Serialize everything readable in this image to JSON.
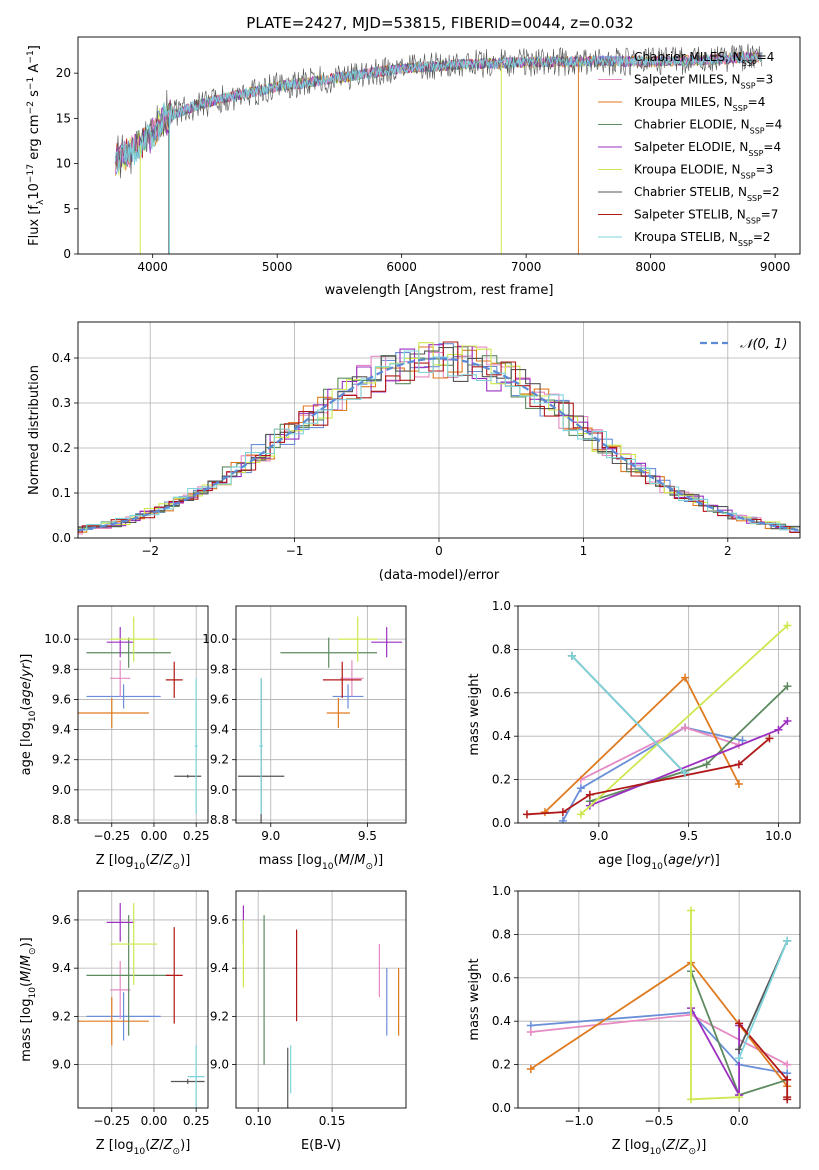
{
  "figure_title": "PLATE=2427, MJD=53815, FIBERID=0044, z=0.032",
  "colors": {
    "Chabrier MILES": "#6a8fd8",
    "Salpeter MILES": "#e58ac2",
    "Kroupa MILES": "#e07a1f",
    "Chabrier ELODIE": "#5e8a60",
    "Salpeter ELODIE": "#9b30c0",
    "Kroupa ELODIE": "#cde84f",
    "Chabrier STELIB": "#555555",
    "Salpeter STELIB": "#b01818",
    "Kroupa STELIB": "#7fd4dc",
    "normal": "#5b8bd6"
  },
  "chart_data": [
    {
      "id": "spectrum",
      "type": "line",
      "xlabel": "wavelength [Angstrom, rest frame]",
      "ylabel": "Flux [f",
      "xlim": [
        3400,
        9200
      ],
      "ylim": [
        0,
        24
      ],
      "xticks": [
        "4000",
        "5000",
        "6000",
        "7000",
        "8000",
        "9000"
      ],
      "yticks": [
        "0",
        "5",
        "10",
        "15",
        "20"
      ],
      "grid": false,
      "legend_position": "right",
      "legend": [
        "Chabrier MILES, N=4",
        "Salpeter MILES, N=3",
        "Kroupa MILES, N=4",
        "Chabrier ELODIE, N=4",
        "Salpeter ELODIE, N=4",
        "Kroupa ELODIE, N=3",
        "Chabrier STELIB, N=2",
        "Salpeter STELIB, N=7",
        "Kroupa STELIB, N=2"
      ],
      "continuum": {
        "x": [
          3700,
          3800,
          3900,
          4000,
          4100,
          4300,
          4500,
          5000,
          5500,
          6000,
          6500,
          7000,
          7500,
          8000,
          8500,
          8900
        ],
        "y": [
          10.5,
          11.0,
          12.0,
          13.5,
          15.0,
          16.2,
          17.0,
          18.5,
          19.5,
          20.5,
          21.0,
          21.2,
          21.3,
          21.3,
          21.5,
          21.8
        ]
      },
      "spikes": [
        {
          "series": "Chabrier STELIB",
          "x": 4130,
          "y_low": 0
        },
        {
          "series": "Kroupa STELIB",
          "x": 4135,
          "y_low": 0
        },
        {
          "series": "Kroupa ELODIE",
          "x": 3900,
          "y_low": 0
        },
        {
          "series": "Kroupa ELODIE",
          "x": 6800,
          "y_low": 0
        },
        {
          "series": "Kroupa MILES",
          "x": 7420,
          "y_low": 0
        }
      ]
    },
    {
      "id": "residual_hist",
      "type": "line",
      "xlabel": "(data-model)/error",
      "ylabel": "Normed distribution",
      "xlim": [
        -2.5,
        2.5
      ],
      "ylim": [
        0,
        0.48
      ],
      "xticks": [
        "−2",
        "−1",
        "0",
        "1",
        "2"
      ],
      "yticks": [
        "0.0",
        "0.1",
        "0.2",
        "0.3",
        "0.4"
      ],
      "grid": true,
      "legend_position": "top-right",
      "legend": [
        "N(0, 1)"
      ]
    },
    {
      "id": "age_vs_Z",
      "type": "scatter",
      "xlabel": "Z [log10(Z/Z⊙)]",
      "ylabel": "age  [log10(age/yr)]",
      "xlim": [
        -0.45,
        0.32
      ],
      "ylim": [
        8.78,
        10.22
      ],
      "xticks": [
        "−0.25",
        "0.00",
        "0.25"
      ],
      "yticks": [
        "8.8",
        "9.0",
        "9.2",
        "9.4",
        "9.6",
        "9.8",
        "10.0"
      ],
      "grid": true,
      "points": [
        {
          "series": "Chabrier MILES",
          "x": -0.18,
          "y": 9.62,
          "dx": 0.22,
          "dy": 0.08
        },
        {
          "series": "Salpeter MILES",
          "x": -0.2,
          "y": 9.74,
          "dx": 0.06,
          "dy": 0.12
        },
        {
          "series": "Kroupa MILES",
          "x": -0.25,
          "y": 9.51,
          "dx": 0.22,
          "dy": 0.1
        },
        {
          "series": "Chabrier ELODIE",
          "x": -0.15,
          "y": 9.91,
          "dx": 0.25,
          "dy": 0.1
        },
        {
          "series": "Salpeter ELODIE",
          "x": -0.2,
          "y": 9.98,
          "dx": 0.08,
          "dy": 0.1
        },
        {
          "series": "Kroupa ELODIE",
          "x": -0.12,
          "y": 10.0,
          "dx": 0.14,
          "dy": 0.15
        },
        {
          "series": "Chabrier STELIB",
          "x": 0.2,
          "y": 9.09,
          "dx": 0.08,
          "dy": 0.01
        },
        {
          "series": "Salpeter STELIB",
          "x": 0.12,
          "y": 9.73,
          "dx": 0.05,
          "dy": 0.12
        },
        {
          "series": "Kroupa STELIB",
          "x": 0.25,
          "y": 9.29,
          "dx": 0.01,
          "dy": 0.45
        }
      ]
    },
    {
      "id": "age_vs_mass",
      "type": "scatter",
      "xlabel": "mass [log10(M/M⊙)]",
      "ylabel": "",
      "xlim": [
        8.82,
        9.7
      ],
      "ylim": [
        8.78,
        10.22
      ],
      "xticks": [
        "9.0",
        "9.5"
      ],
      "yticks": [
        "8.8",
        "9.0",
        "9.2",
        "9.4",
        "9.6",
        "9.8",
        "10.0"
      ],
      "grid": true,
      "points": [
        {
          "series": "Chabrier MILES",
          "x": 9.4,
          "y": 9.62,
          "dx": 0.08,
          "dy": 0.08
        },
        {
          "series": "Salpeter MILES",
          "x": 9.42,
          "y": 9.74,
          "dx": 0.06,
          "dy": 0.12
        },
        {
          "series": "Kroupa MILES",
          "x": 9.35,
          "y": 9.51,
          "dx": 0.06,
          "dy": 0.1
        },
        {
          "series": "Chabrier ELODIE",
          "x": 9.3,
          "y": 9.91,
          "dx": 0.25,
          "dy": 0.1
        },
        {
          "series": "Salpeter ELODIE",
          "x": 9.6,
          "y": 9.98,
          "dx": 0.08,
          "dy": 0.1
        },
        {
          "series": "Kroupa ELODIE",
          "x": 9.45,
          "y": 10.0,
          "dx": 0.1,
          "dy": 0.15
        },
        {
          "series": "Chabrier STELIB",
          "x": 8.95,
          "y": 9.09,
          "dx": 0.12,
          "dy": 0.65
        },
        {
          "series": "Salpeter STELIB",
          "x": 9.37,
          "y": 9.73,
          "dx": 0.1,
          "dy": 0.12
        },
        {
          "series": "Kroupa STELIB",
          "x": 8.95,
          "y": 9.29,
          "dx": 0.01,
          "dy": 0.45
        }
      ]
    },
    {
      "id": "weight_vs_age",
      "type": "line",
      "xlabel": "age  [log10(age/yr)]",
      "ylabel": "mass weight",
      "xlim": [
        8.55,
        10.12
      ],
      "ylim": [
        0,
        1.0
      ],
      "xticks": [
        "9.0",
        "9.5",
        "10.0"
      ],
      "yticks": [
        "0.0",
        "0.2",
        "0.4",
        "0.6",
        "0.8",
        "1.0"
      ],
      "grid": true,
      "series": [
        {
          "series": "Chabrier MILES",
          "x": [
            8.8,
            8.9,
            9.48,
            9.8
          ],
          "y": [
            0.01,
            0.16,
            0.44,
            0.38
          ]
        },
        {
          "series": "Salpeter MILES",
          "x": [
            8.9,
            9.48,
            9.78
          ],
          "y": [
            0.2,
            0.44,
            0.36
          ]
        },
        {
          "series": "Kroupa MILES",
          "x": [
            8.7,
            9.48,
            9.78
          ],
          "y": [
            0.05,
            0.67,
            0.18
          ]
        },
        {
          "series": "Chabrier ELODIE",
          "x": [
            8.95,
            9.6,
            10.05
          ],
          "y": [
            0.1,
            0.27,
            0.63
          ]
        },
        {
          "series": "Salpeter ELODIE",
          "x": [
            8.95,
            10.0,
            10.05
          ],
          "y": [
            0.08,
            0.43,
            0.47
          ]
        },
        {
          "series": "Kroupa ELODIE",
          "x": [
            8.9,
            10.05
          ],
          "y": [
            0.04,
            0.91
          ]
        },
        {
          "series": "Chabrier STELIB",
          "x": [
            8.85,
            9.48
          ],
          "y": [
            0.77,
            0.23
          ]
        },
        {
          "series": "Salpeter STELIB",
          "x": [
            8.6,
            8.8,
            8.95,
            9.78,
            9.95
          ],
          "y": [
            0.04,
            0.05,
            0.13,
            0.27,
            0.39
          ]
        },
        {
          "series": "Kroupa STELIB",
          "x": [
            8.85,
            9.48
          ],
          "y": [
            0.77,
            0.23
          ]
        }
      ]
    },
    {
      "id": "mass_vs_Z",
      "type": "scatter",
      "xlabel": "Z [log10(Z/Z⊙)]",
      "ylabel": "mass [log10(M/M⊙)]",
      "xlim": [
        -0.45,
        0.32
      ],
      "ylim": [
        8.82,
        9.72
      ],
      "xticks": [
        "−0.25",
        "0.00",
        "0.25"
      ],
      "yticks": [
        "9.0",
        "9.2",
        "9.4",
        "9.6"
      ],
      "grid": true,
      "points": [
        {
          "series": "Chabrier MILES",
          "x": -0.18,
          "y": 9.2,
          "dx": 0.22,
          "dy": 0.1
        },
        {
          "series": "Salpeter MILES",
          "x": -0.2,
          "y": 9.31,
          "dx": 0.06,
          "dy": 0.12
        },
        {
          "series": "Kroupa MILES",
          "x": -0.25,
          "y": 9.18,
          "dx": 0.22,
          "dy": 0.1
        },
        {
          "series": "Chabrier ELODIE",
          "x": -0.15,
          "y": 9.37,
          "dx": 0.25,
          "dy": 0.25
        },
        {
          "series": "Salpeter ELODIE",
          "x": -0.2,
          "y": 9.59,
          "dx": 0.08,
          "dy": 0.08
        },
        {
          "series": "Kroupa ELODIE",
          "x": -0.12,
          "y": 9.5,
          "dx": 0.14,
          "dy": 0.17
        },
        {
          "series": "Chabrier STELIB",
          "x": 0.2,
          "y": 8.93,
          "dx": 0.1,
          "dy": 0.01
        },
        {
          "series": "Salpeter STELIB",
          "x": 0.12,
          "y": 9.37,
          "dx": 0.05,
          "dy": 0.2
        },
        {
          "series": "Kroupa STELIB",
          "x": 0.25,
          "y": 8.95,
          "dx": 0.05,
          "dy": 0.13
        }
      ]
    },
    {
      "id": "mass_vs_ebv",
      "type": "scatter",
      "xlabel": "E(B-V)",
      "ylabel": "",
      "xlim": [
        0.085,
        0.2
      ],
      "ylim": [
        8.82,
        9.72
      ],
      "xticks": [
        "0.10",
        "0.15"
      ],
      "yticks": [
        "9.0",
        "9.2",
        "9.4",
        "9.6"
      ],
      "grid": true,
      "points": [
        {
          "series": "Chabrier MILES",
          "x": 0.187,
          "y": 9.26,
          "dx": 0,
          "dy": 0.14
        },
        {
          "series": "Salpeter MILES",
          "x": 0.182,
          "y": 9.39,
          "dx": 0,
          "dy": 0.11
        },
        {
          "series": "Kroupa MILES",
          "x": 0.195,
          "y": 9.26,
          "dx": 0,
          "dy": 0.14
        },
        {
          "series": "Chabrier ELODIE",
          "x": 0.104,
          "y": 9.31,
          "dx": 0,
          "dy": 0.31
        },
        {
          "series": "Salpeter ELODIE",
          "x": 0.09,
          "y": 9.58,
          "dx": 0,
          "dy": 0.08
        },
        {
          "series": "Kroupa ELODIE",
          "x": 0.09,
          "y": 9.46,
          "dx": 0,
          "dy": 0.14
        },
        {
          "series": "Chabrier STELIB",
          "x": 0.12,
          "y": 8.94,
          "dx": 0,
          "dy": 0.13
        },
        {
          "series": "Salpeter STELIB",
          "x": 0.126,
          "y": 9.37,
          "dx": 0,
          "dy": 0.19
        },
        {
          "series": "Kroupa STELIB",
          "x": 0.122,
          "y": 8.98,
          "dx": 0,
          "dy": 0.1
        }
      ]
    },
    {
      "id": "weight_vs_Z",
      "type": "line",
      "xlabel": "Z [log10(Z/Z⊙)]",
      "ylabel": "mass weight",
      "xlim": [
        -1.38,
        0.38
      ],
      "ylim": [
        0,
        1.0
      ],
      "xticks": [
        "−1.0",
        "−0.5",
        "0.0"
      ],
      "yticks": [
        "0.0",
        "0.2",
        "0.4",
        "0.6",
        "0.8",
        "1.0"
      ],
      "grid": true,
      "series": [
        {
          "series": "Chabrier MILES",
          "x": [
            -1.3,
            -0.3,
            0.0,
            0.3
          ],
          "y": [
            0.38,
            0.44,
            0.2,
            0.16
          ]
        },
        {
          "series": "Salpeter MILES",
          "x": [
            -1.3,
            -0.3,
            0.3
          ],
          "y": [
            0.35,
            0.43,
            0.2
          ]
        },
        {
          "series": "Kroupa MILES",
          "x": [
            -1.3,
            -0.3,
            0.3
          ],
          "y": [
            0.18,
            0.67,
            0.1
          ]
        },
        {
          "series": "Chabrier ELODIE",
          "x": [
            -0.3,
            0.0,
            0.3
          ],
          "y": [
            0.63,
            0.06,
            0.13
          ]
        },
        {
          "series": "Salpeter ELODIE",
          "x": [
            -0.3,
            0.0,
            0.0
          ],
          "y": [
            0.46,
            0.06,
            0.38
          ]
        },
        {
          "series": "Kroupa ELODIE",
          "x": [
            -0.3,
            -0.3,
            0.0
          ],
          "y": [
            0.91,
            0.04,
            0.05
          ]
        },
        {
          "series": "Chabrier STELIB",
          "x": [
            0.0,
            0.3
          ],
          "y": [
            0.27,
            0.77
          ]
        },
        {
          "series": "Salpeter STELIB",
          "x": [
            0.0,
            0.3,
            0.3,
            0.3
          ],
          "y": [
            0.39,
            0.13,
            0.05,
            0.04
          ]
        },
        {
          "series": "Kroupa STELIB",
          "x": [
            0.0,
            0.3
          ],
          "y": [
            0.23,
            0.77
          ]
        }
      ]
    }
  ]
}
